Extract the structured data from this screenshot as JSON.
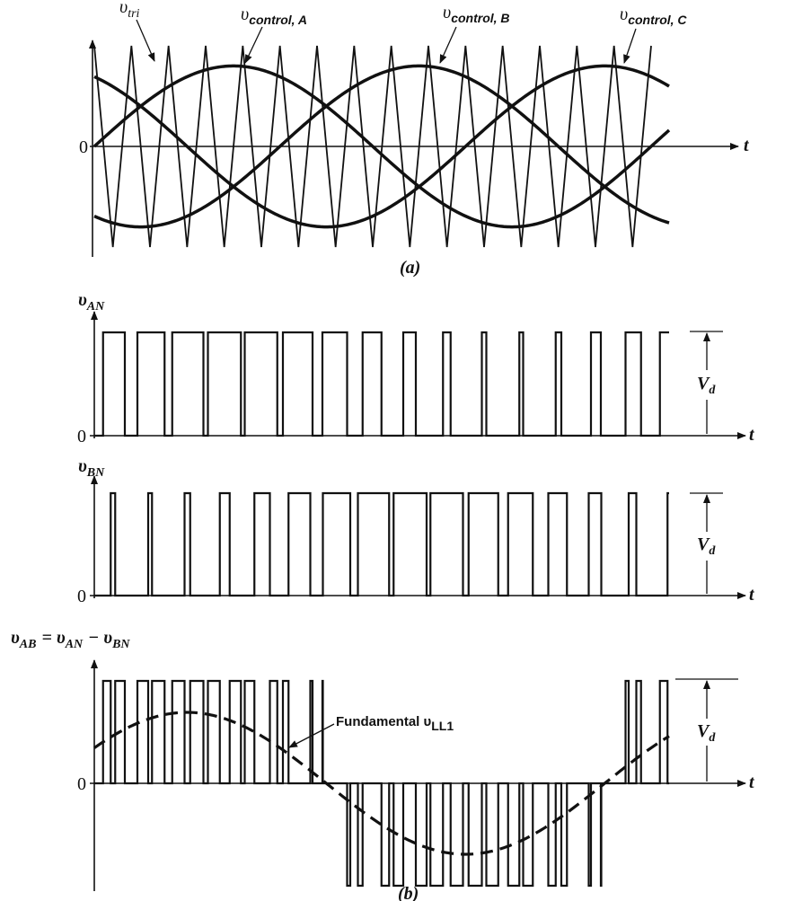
{
  "panel_a": {
    "tri_label": {
      "main": "υ",
      "sub": "tri"
    },
    "control_a_label": {
      "main": "υ",
      "sub": "control, A"
    },
    "control_b_label": {
      "main": "υ",
      "sub": "control, B"
    },
    "control_c_label": {
      "main": "υ",
      "sub": "control, C"
    },
    "origin": "0",
    "axis": "t",
    "caption": "(a)"
  },
  "panel_b": {
    "van": {
      "label": {
        "main": "υ",
        "sub": "AN"
      },
      "origin": "0",
      "axis": "t",
      "level": {
        "main": "V",
        "sub": "d"
      }
    },
    "vbn": {
      "label": {
        "main": "υ",
        "sub": "BN"
      },
      "origin": "0",
      "axis": "t",
      "level": {
        "main": "V",
        "sub": "d"
      }
    },
    "vab": {
      "label": [
        {
          "main": "υ",
          "sub": "AB"
        },
        {
          "main": "= υ",
          "sub": "AN"
        },
        {
          "main": "− υ",
          "sub": "BN"
        }
      ],
      "origin": "0",
      "axis": "t",
      "level": {
        "main": "V",
        "sub": "d"
      },
      "fundamental": {
        "main": "Fundamental υ",
        "sub": "LL1"
      }
    },
    "caption": "(b)"
  }
}
